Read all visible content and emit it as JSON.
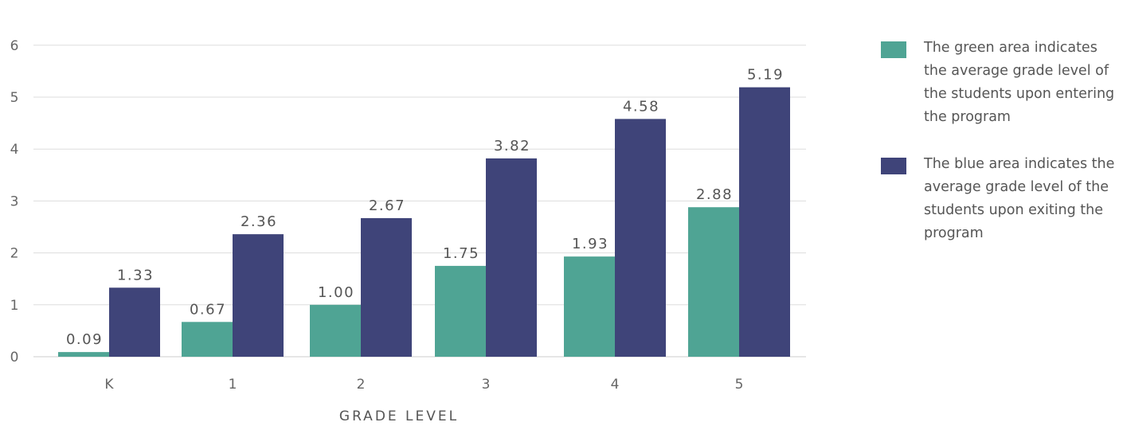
{
  "colors": {
    "entering": "#4fa494",
    "exiting": "#3f4479",
    "grid": "#dddddd",
    "axis": "#cccccc"
  },
  "chart_data": {
    "type": "bar",
    "categories": [
      "K",
      "1",
      "2",
      "3",
      "4",
      "5"
    ],
    "series": [
      {
        "values": [
          0.09,
          0.67,
          1.0,
          1.75,
          1.93,
          2.88
        ],
        "labels": [
          "0.09",
          "0.67",
          "1.00",
          "1.75",
          "1.93",
          "2.88"
        ],
        "color": "#4fa494"
      },
      {
        "values": [
          1.33,
          2.36,
          2.67,
          3.82,
          4.58,
          5.19
        ],
        "labels": [
          "1.33",
          "2.36",
          "2.67",
          "3.82",
          "4.58",
          "5.19"
        ],
        "color": "#3f4479"
      }
    ],
    "yticks": [
      "0",
      "1",
      "2",
      "3",
      "4",
      "5",
      "6"
    ],
    "ylim": [
      0,
      6
    ],
    "xlabel": "GRADE LEVEL",
    "ylabel": "",
    "grid": true,
    "legend_position": "right"
  },
  "legend": {
    "items": [
      {
        "text": "The green area indicates the average grade level of the students upon entering the program",
        "color": "#4fa494"
      },
      {
        "text": "The blue area indicates the average grade level of the students upon exiting the program",
        "color": "#3f4479"
      }
    ]
  }
}
